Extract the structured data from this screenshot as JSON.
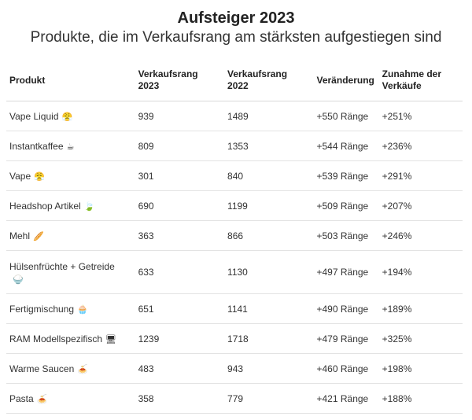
{
  "title": "Aufsteiger 2023",
  "subtitle": "Produkte, die im Verkaufsrang am stärksten aufgestiegen sind",
  "chart_data": {
    "type": "table",
    "columns": [
      "Produkt",
      "Verkaufsrang 2023",
      "Verkaufsrang 2022",
      "Veränderung",
      "Zunahme der Verkäufe"
    ],
    "rows": [
      {
        "produkt": "Vape Liquid",
        "icon": "😤",
        "rang2023": "939",
        "rang2022": "1489",
        "veraenderung": "+550 Ränge",
        "zunahme": "+251%"
      },
      {
        "produkt": "Instantkaffee",
        "icon": "☕",
        "rang2023": "809",
        "rang2022": "1353",
        "veraenderung": "+544 Ränge",
        "zunahme": "+236%"
      },
      {
        "produkt": "Vape",
        "icon": "😤",
        "rang2023": "301",
        "rang2022": "840",
        "veraenderung": "+539 Ränge",
        "zunahme": "+291%"
      },
      {
        "produkt": "Headshop Artikel",
        "icon": "🍃",
        "rang2023": "690",
        "rang2022": "1199",
        "veraenderung": "+509 Ränge",
        "zunahme": "+207%"
      },
      {
        "produkt": "Mehl",
        "icon": "🥖",
        "rang2023": "363",
        "rang2022": "866",
        "veraenderung": "+503 Ränge",
        "zunahme": "+246%"
      },
      {
        "produkt": "Hülsenfrüchte + Getreide",
        "icon": "🍚",
        "rang2023": "633",
        "rang2022": "1130",
        "veraenderung": "+497 Ränge",
        "zunahme": "+194%"
      },
      {
        "produkt": "Fertigmischung",
        "icon": "🧁",
        "rang2023": "651",
        "rang2022": "1141",
        "veraenderung": "+490 Ränge",
        "zunahme": "+189%"
      },
      {
        "produkt": "RAM Modellspezifisch",
        "icon": "🖥",
        "rang2023": "1239",
        "rang2022": "1718",
        "veraenderung": "+479 Ränge",
        "zunahme": "+325%"
      },
      {
        "produkt": "Warme Saucen",
        "icon": "🍝",
        "rang2023": "483",
        "rang2022": "943",
        "veraenderung": "+460 Ränge",
        "zunahme": "+198%"
      },
      {
        "produkt": "Pasta",
        "icon": "🍝",
        "rang2023": "358",
        "rang2022": "779",
        "veraenderung": "+421 Ränge",
        "zunahme": "+188%"
      }
    ]
  }
}
